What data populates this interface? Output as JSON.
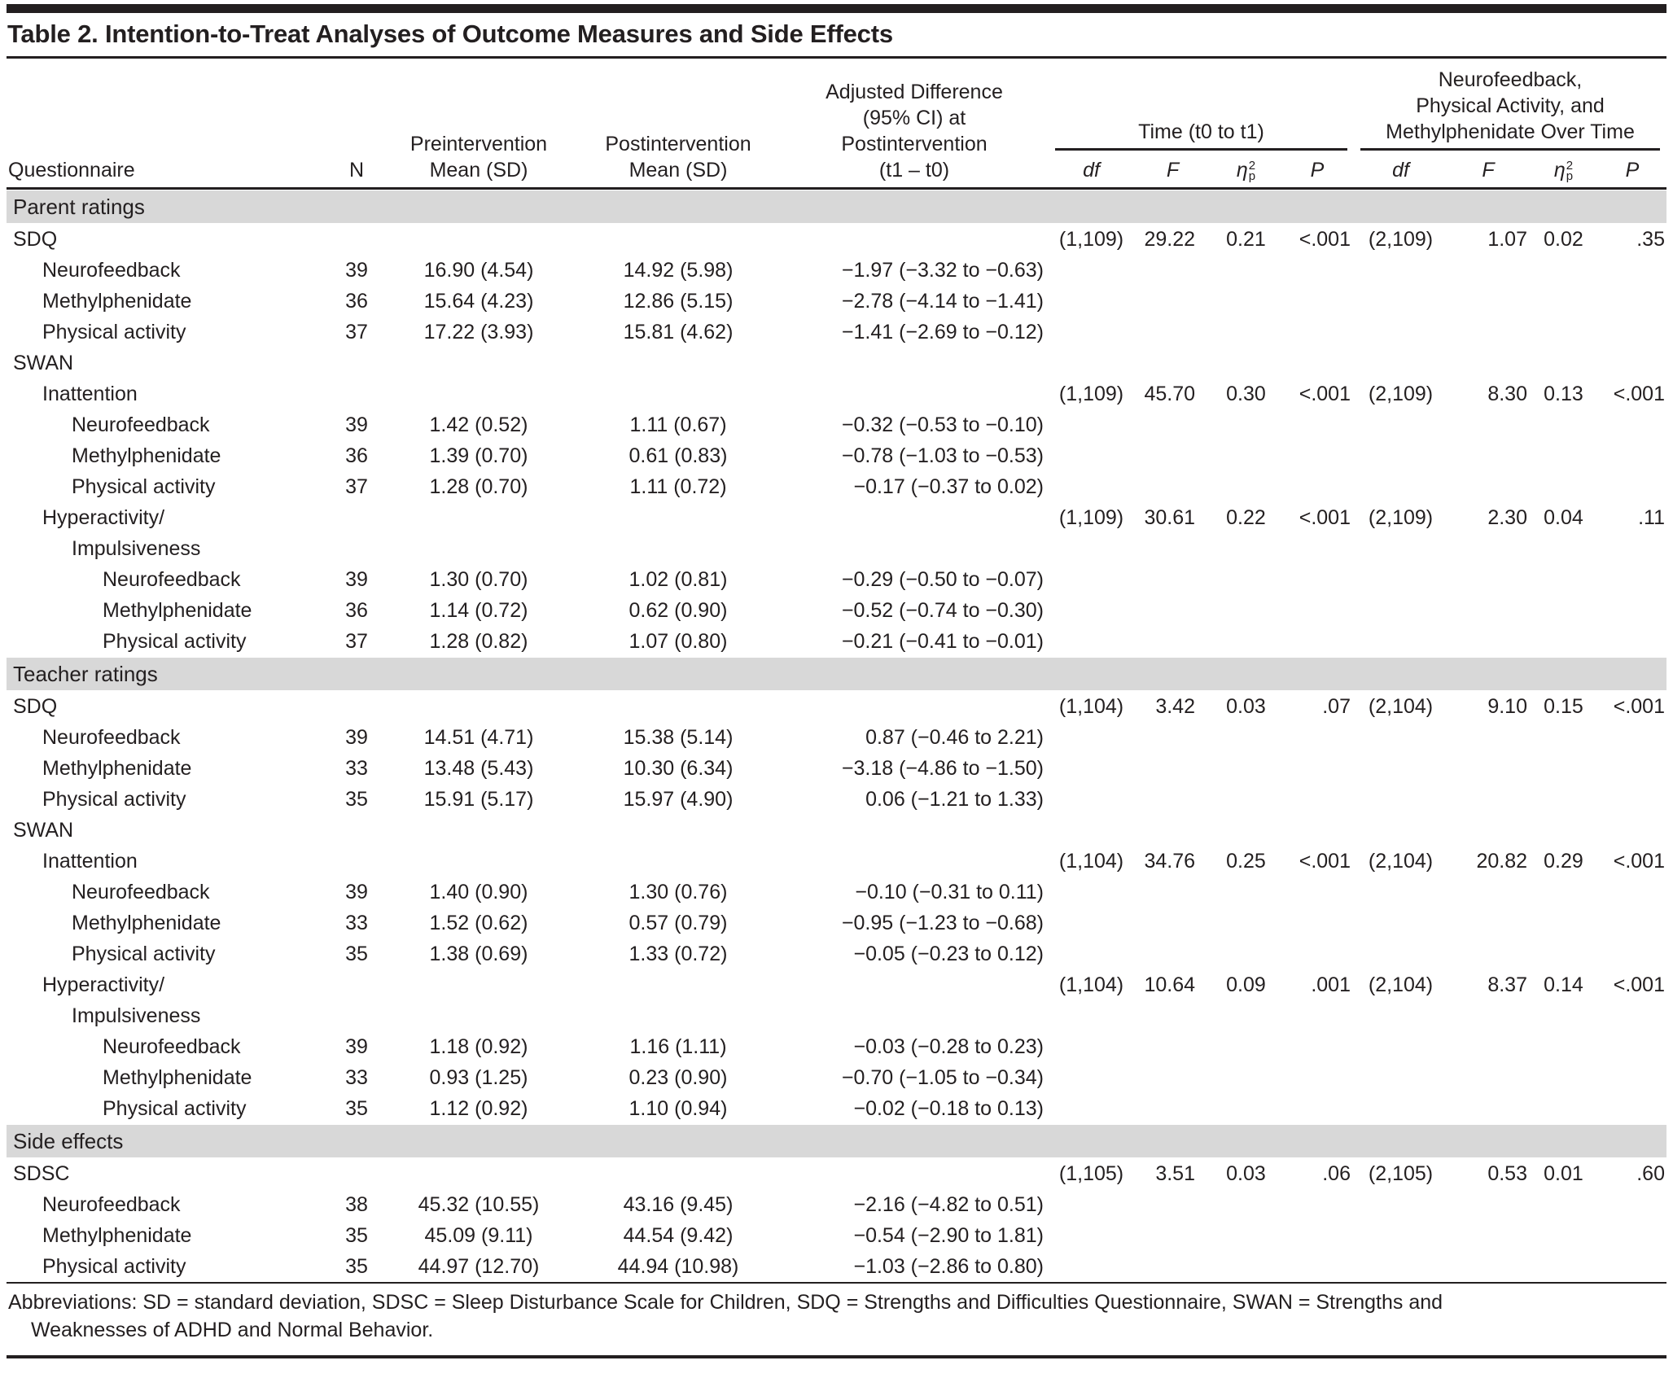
{
  "title": "Table 2. Intention-to-Treat Analyses of Outcome Measures and Side Effects",
  "header": {
    "questionnaire": "Questionnaire",
    "n": "N",
    "pre": "Preintervention\nMean (SD)",
    "post": "Postintervention\nMean (SD)",
    "adjusted_diff": "Adjusted Difference\n(95% CI) at\nPostintervention\n(t1 – t0)",
    "time_group": "Time (t0 to t1)",
    "nfb_group": "Neurofeedback,\nPhysical Activity, and\nMethylphenidate Over Time",
    "df": "df",
    "F": "F",
    "eta": {
      "sym": "η",
      "sub": "p",
      "sup": "2"
    },
    "P": "P"
  },
  "table": {
    "columns": [
      {
        "key": "label"
      },
      {
        "key": "n"
      },
      {
        "key": "pre"
      },
      {
        "key": "post"
      },
      {
        "key": "diff"
      },
      {
        "key": "df1"
      },
      {
        "key": "f1"
      },
      {
        "key": "eta1"
      },
      {
        "key": "p1"
      },
      {
        "key": "df2"
      },
      {
        "key": "f2"
      },
      {
        "key": "eta2"
      },
      {
        "key": "p2"
      }
    ],
    "rows": [
      {
        "type": "section",
        "label": "Parent ratings"
      },
      {
        "type": "row",
        "indent": 0,
        "cells": {
          "label": "SDQ",
          "df1": "(1,109)",
          "f1": "29.22",
          "eta1": "0.21",
          "p1": "<.001",
          "df2": "(2,109)",
          "f2": "1.07",
          "eta2": "0.02",
          "p2": ".35"
        }
      },
      {
        "type": "row",
        "indent": 1,
        "cells": {
          "label": "Neurofeedback",
          "n": "39",
          "pre": "16.90 (4.54)",
          "post": "14.92 (5.98)",
          "diff": "−1.97 (−3.32 to −0.63)"
        }
      },
      {
        "type": "row",
        "indent": 1,
        "cells": {
          "label": "Methylphenidate",
          "n": "36",
          "pre": "15.64 (4.23)",
          "post": "12.86 (5.15)",
          "diff": "−2.78 (−4.14 to −1.41)"
        }
      },
      {
        "type": "row",
        "indent": 1,
        "cells": {
          "label": "Physical activity",
          "n": "37",
          "pre": "17.22 (3.93)",
          "post": "15.81 (4.62)",
          "diff": "−1.41 (−2.69 to −0.12)"
        }
      },
      {
        "type": "row",
        "indent": 0,
        "cells": {
          "label": "SWAN"
        }
      },
      {
        "type": "row",
        "indent": 1,
        "cells": {
          "label": "Inattention",
          "df1": "(1,109)",
          "f1": "45.70",
          "eta1": "0.30",
          "p1": "<.001",
          "df2": "(2,109)",
          "f2": "8.30",
          "eta2": "0.13",
          "p2": "<.001"
        }
      },
      {
        "type": "row",
        "indent": 2,
        "cells": {
          "label": "Neurofeedback",
          "n": "39",
          "pre": "1.42 (0.52)",
          "post": "1.11 (0.67)",
          "diff": "−0.32 (−0.53 to −0.10)"
        }
      },
      {
        "type": "row",
        "indent": 2,
        "cells": {
          "label": "Methylphenidate",
          "n": "36",
          "pre": "1.39 (0.70)",
          "post": "0.61 (0.83)",
          "diff": "−0.78 (−1.03 to −0.53)"
        }
      },
      {
        "type": "row",
        "indent": 2,
        "cells": {
          "label": "Physical activity",
          "n": "37",
          "pre": "1.28 (0.70)",
          "post": "1.11 (0.72)",
          "diff": "−0.17 (−0.37 to 0.02)"
        }
      },
      {
        "type": "row",
        "indent": 1,
        "cells": {
          "label": "Hyperactivity/",
          "df1": "(1,109)",
          "f1": "30.61",
          "eta1": "0.22",
          "p1": "<.001",
          "df2": "(2,109)",
          "f2": "2.30",
          "eta2": "0.04",
          "p2": ".11"
        }
      },
      {
        "type": "row",
        "indent": 2,
        "cells": {
          "label": "Impulsiveness"
        }
      },
      {
        "type": "row",
        "indent": 3,
        "cells": {
          "label": "Neurofeedback",
          "n": "39",
          "pre": "1.30 (0.70)",
          "post": "1.02 (0.81)",
          "diff": "−0.29 (−0.50 to −0.07)"
        }
      },
      {
        "type": "row",
        "indent": 3,
        "cells": {
          "label": "Methylphenidate",
          "n": "36",
          "pre": "1.14 (0.72)",
          "post": "0.62 (0.90)",
          "diff": "−0.52 (−0.74 to −0.30)"
        }
      },
      {
        "type": "row",
        "indent": 3,
        "cells": {
          "label": "Physical activity",
          "n": "37",
          "pre": "1.28 (0.82)",
          "post": "1.07 (0.80)",
          "diff": "−0.21 (−0.41 to −0.01)"
        }
      },
      {
        "type": "section",
        "label": "Teacher ratings"
      },
      {
        "type": "row",
        "indent": 0,
        "cells": {
          "label": "SDQ",
          "df1": "(1,104)",
          "f1": "3.42",
          "eta1": "0.03",
          "p1": ".07",
          "df2": "(2,104)",
          "f2": "9.10",
          "eta2": "0.15",
          "p2": "<.001"
        }
      },
      {
        "type": "row",
        "indent": 1,
        "cells": {
          "label": "Neurofeedback",
          "n": "39",
          "pre": "14.51 (4.71)",
          "post": "15.38 (5.14)",
          "diff": "0.87 (−0.46 to 2.21)"
        }
      },
      {
        "type": "row",
        "indent": 1,
        "cells": {
          "label": "Methylphenidate",
          "n": "33",
          "pre": "13.48 (5.43)",
          "post": "10.30 (6.34)",
          "diff": "−3.18 (−4.86 to −1.50)"
        }
      },
      {
        "type": "row",
        "indent": 1,
        "cells": {
          "label": "Physical activity",
          "n": "35",
          "pre": "15.91 (5.17)",
          "post": "15.97 (4.90)",
          "diff": "0.06 (−1.21 to 1.33)"
        }
      },
      {
        "type": "row",
        "indent": 0,
        "cells": {
          "label": "SWAN"
        }
      },
      {
        "type": "row",
        "indent": 1,
        "cells": {
          "label": "Inattention",
          "df1": "(1,104)",
          "f1": "34.76",
          "eta1": "0.25",
          "p1": "<.001",
          "df2": "(2,104)",
          "f2": "20.82",
          "eta2": "0.29",
          "p2": "<.001"
        }
      },
      {
        "type": "row",
        "indent": 2,
        "cells": {
          "label": "Neurofeedback",
          "n": "39",
          "pre": "1.40 (0.90)",
          "post": "1.30 (0.76)",
          "diff": "−0.10 (−0.31 to 0.11)"
        }
      },
      {
        "type": "row",
        "indent": 2,
        "cells": {
          "label": "Methylphenidate",
          "n": "33",
          "pre": "1.52 (0.62)",
          "post": "0.57 (0.79)",
          "diff": "−0.95 (−1.23 to −0.68)"
        }
      },
      {
        "type": "row",
        "indent": 2,
        "cells": {
          "label": "Physical activity",
          "n": "35",
          "pre": "1.38 (0.69)",
          "post": "1.33 (0.72)",
          "diff": "−0.05 (−0.23 to 0.12)"
        }
      },
      {
        "type": "row",
        "indent": 1,
        "cells": {
          "label": "Hyperactivity/",
          "df1": "(1,104)",
          "f1": "10.64",
          "eta1": "0.09",
          "p1": ".001",
          "df2": "(2,104)",
          "f2": "8.37",
          "eta2": "0.14",
          "p2": "<.001"
        }
      },
      {
        "type": "row",
        "indent": 2,
        "cells": {
          "label": "Impulsiveness"
        }
      },
      {
        "type": "row",
        "indent": 3,
        "cells": {
          "label": "Neurofeedback",
          "n": "39",
          "pre": "1.18 (0.92)",
          "post": "1.16 (1.11)",
          "diff": "−0.03 (−0.28 to 0.23)"
        }
      },
      {
        "type": "row",
        "indent": 3,
        "cells": {
          "label": "Methylphenidate",
          "n": "33",
          "pre": "0.93 (1.25)",
          "post": "0.23 (0.90)",
          "diff": "−0.70 (−1.05 to −0.34)"
        }
      },
      {
        "type": "row",
        "indent": 3,
        "cells": {
          "label": "Physical activity",
          "n": "35",
          "pre": "1.12 (0.92)",
          "post": "1.10 (0.94)",
          "diff": "−0.02 (−0.18 to 0.13)"
        }
      },
      {
        "type": "section",
        "label": "Side effects"
      },
      {
        "type": "row",
        "indent": 0,
        "cells": {
          "label": "SDSC",
          "df1": "(1,105)",
          "f1": "3.51",
          "eta1": "0.03",
          "p1": ".06",
          "df2": "(2,105)",
          "f2": "0.53",
          "eta2": "0.01",
          "p2": ".60"
        }
      },
      {
        "type": "row",
        "indent": 1,
        "cells": {
          "label": "Neurofeedback",
          "n": "38",
          "pre": "45.32 (10.55)",
          "post": "43.16 (9.45)",
          "diff": "−2.16 (−4.82 to 0.51)"
        }
      },
      {
        "type": "row",
        "indent": 1,
        "cells": {
          "label": "Methylphenidate",
          "n": "35",
          "pre": "45.09 (9.11)",
          "post": "44.54 (9.42)",
          "diff": "−0.54 (−2.90 to 1.81)"
        }
      },
      {
        "type": "row",
        "indent": 1,
        "cells": {
          "label": "Physical activity",
          "n": "35",
          "pre": "44.97 (12.70)",
          "post": "44.94 (10.98)",
          "diff": "−1.03 (−2.86 to 0.80)"
        }
      }
    ]
  },
  "footer": {
    "abbreviations": "Abbreviations: SD = standard deviation, SDSC = Sleep Disturbance Scale for Children, SDQ = Strengths and Difficulties Questionnaire, SWAN = Strengths and Weaknesses of ADHD and Normal Behavior."
  }
}
